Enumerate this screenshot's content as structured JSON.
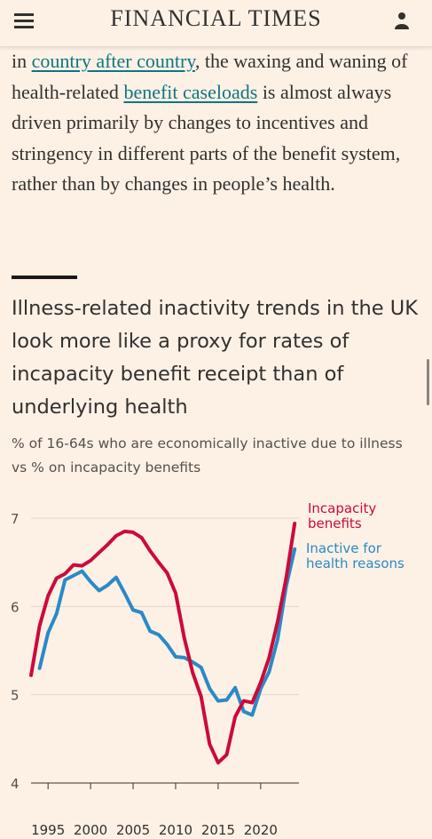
{
  "header": {
    "title": "FINANCIAL TIMES"
  },
  "article": {
    "seg1": "in ",
    "link1": "country after country",
    "seg2": ", the waxing and waning of health-related ",
    "link2": "benefit caseloads",
    "seg3": " is almost always driven primarily by changes to incentives and stringency in different parts of the benefit system, rather than by changes in people’s health."
  },
  "chart_data": {
    "type": "line",
    "title": "Illness-related inactivity trends in the UK look more like a proxy for rates of incapacity benefit receipt than of underlying health",
    "subtitle": "% of 16-64s who are economically inactive due to illness vs % on incapacity benefits",
    "xlabel": "",
    "ylabel": "",
    "xlim": [
      1993,
      2024.5
    ],
    "ylim": [
      4,
      7
    ],
    "xticks": [
      1995,
      2000,
      2005,
      2010,
      2015,
      2020
    ],
    "yticks": [
      4,
      5,
      6,
      7
    ],
    "grid": true,
    "legend": "direct labels at right end of lines",
    "series": [
      {
        "name": "Incapacity benefits",
        "label_lines": [
          "Incapacity",
          "benefits"
        ],
        "color": "#cc0a3a",
        "x": [
          1993,
          1994,
          1995,
          1996,
          1997,
          1998,
          1999,
          2000,
          2001,
          2002,
          2003,
          2004,
          2005,
          2006,
          2007,
          2008,
          2009,
          2010,
          2011,
          2012,
          2013,
          2014,
          2015,
          2016,
          2017,
          2018,
          2019,
          2020,
          2021,
          2022,
          2023,
          2024
        ],
        "values": [
          5.22,
          5.78,
          6.12,
          6.32,
          6.37,
          6.47,
          6.46,
          6.52,
          6.61,
          6.7,
          6.8,
          6.85,
          6.84,
          6.78,
          6.63,
          6.5,
          6.38,
          6.15,
          5.65,
          5.25,
          4.98,
          4.44,
          4.23,
          4.32,
          4.75,
          4.93,
          4.91,
          5.14,
          5.42,
          5.83,
          6.32,
          6.94
        ]
      },
      {
        "name": "Inactive for health reasons",
        "label_lines": [
          "Inactive for",
          "health reasons"
        ],
        "color": "#2a8ac7",
        "x": [
          1994,
          1995,
          1996,
          1997,
          1998,
          1999,
          2000,
          2001,
          2002,
          2003,
          2004,
          2005,
          2006,
          2007,
          2008,
          2009,
          2010,
          2011,
          2012,
          2013,
          2014,
          2015,
          2016,
          2017,
          2018,
          2019,
          2020,
          2021,
          2022,
          2023,
          2024
        ],
        "values": [
          5.3,
          5.7,
          5.92,
          6.3,
          6.35,
          6.4,
          6.28,
          6.18,
          6.24,
          6.33,
          6.15,
          5.96,
          5.93,
          5.72,
          5.68,
          5.57,
          5.43,
          5.42,
          5.37,
          5.31,
          5.07,
          4.93,
          4.94,
          5.08,
          4.81,
          4.77,
          5.07,
          5.26,
          5.63,
          6.23,
          6.65
        ]
      }
    ]
  }
}
